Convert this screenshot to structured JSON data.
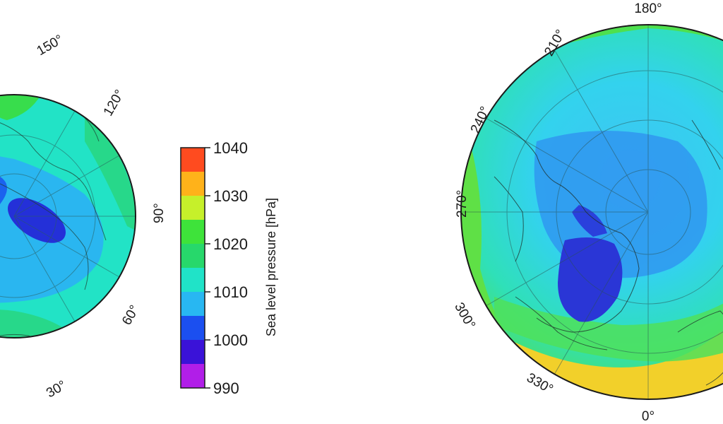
{
  "left_map": {
    "longitude_labels": [
      "150°",
      "120°",
      "90°",
      "60°",
      "30°"
    ]
  },
  "right_map": {
    "longitude_labels": [
      "180°",
      "210°",
      "240°",
      "270°",
      "300°",
      "330°",
      "0°"
    ]
  },
  "colorbar": {
    "title": "Sea level pressure [hPa]",
    "tick_labels": [
      "1040",
      "1030",
      "1020",
      "1010",
      "1000",
      "990"
    ],
    "range": [
      990,
      1040
    ],
    "bands": [
      {
        "from": 990,
        "to": 995,
        "color": "#b11ee8"
      },
      {
        "from": 995,
        "to": 1000,
        "color": "#3a12d8"
      },
      {
        "from": 1000,
        "to": 1005,
        "color": "#1b4ff0"
      },
      {
        "from": 1005,
        "to": 1010,
        "color": "#28b7f2"
      },
      {
        "from": 1010,
        "to": 1015,
        "color": "#20e3c8"
      },
      {
        "from": 1015,
        "to": 1020,
        "color": "#27d86b"
      },
      {
        "from": 1020,
        "to": 1025,
        "color": "#3ee33a"
      },
      {
        "from": 1025,
        "to": 1030,
        "color": "#c6f02a"
      },
      {
        "from": 1030,
        "to": 1035,
        "color": "#ffb21a"
      },
      {
        "from": 1035,
        "to": 1040,
        "color": "#ff4b1f"
      }
    ]
  }
}
